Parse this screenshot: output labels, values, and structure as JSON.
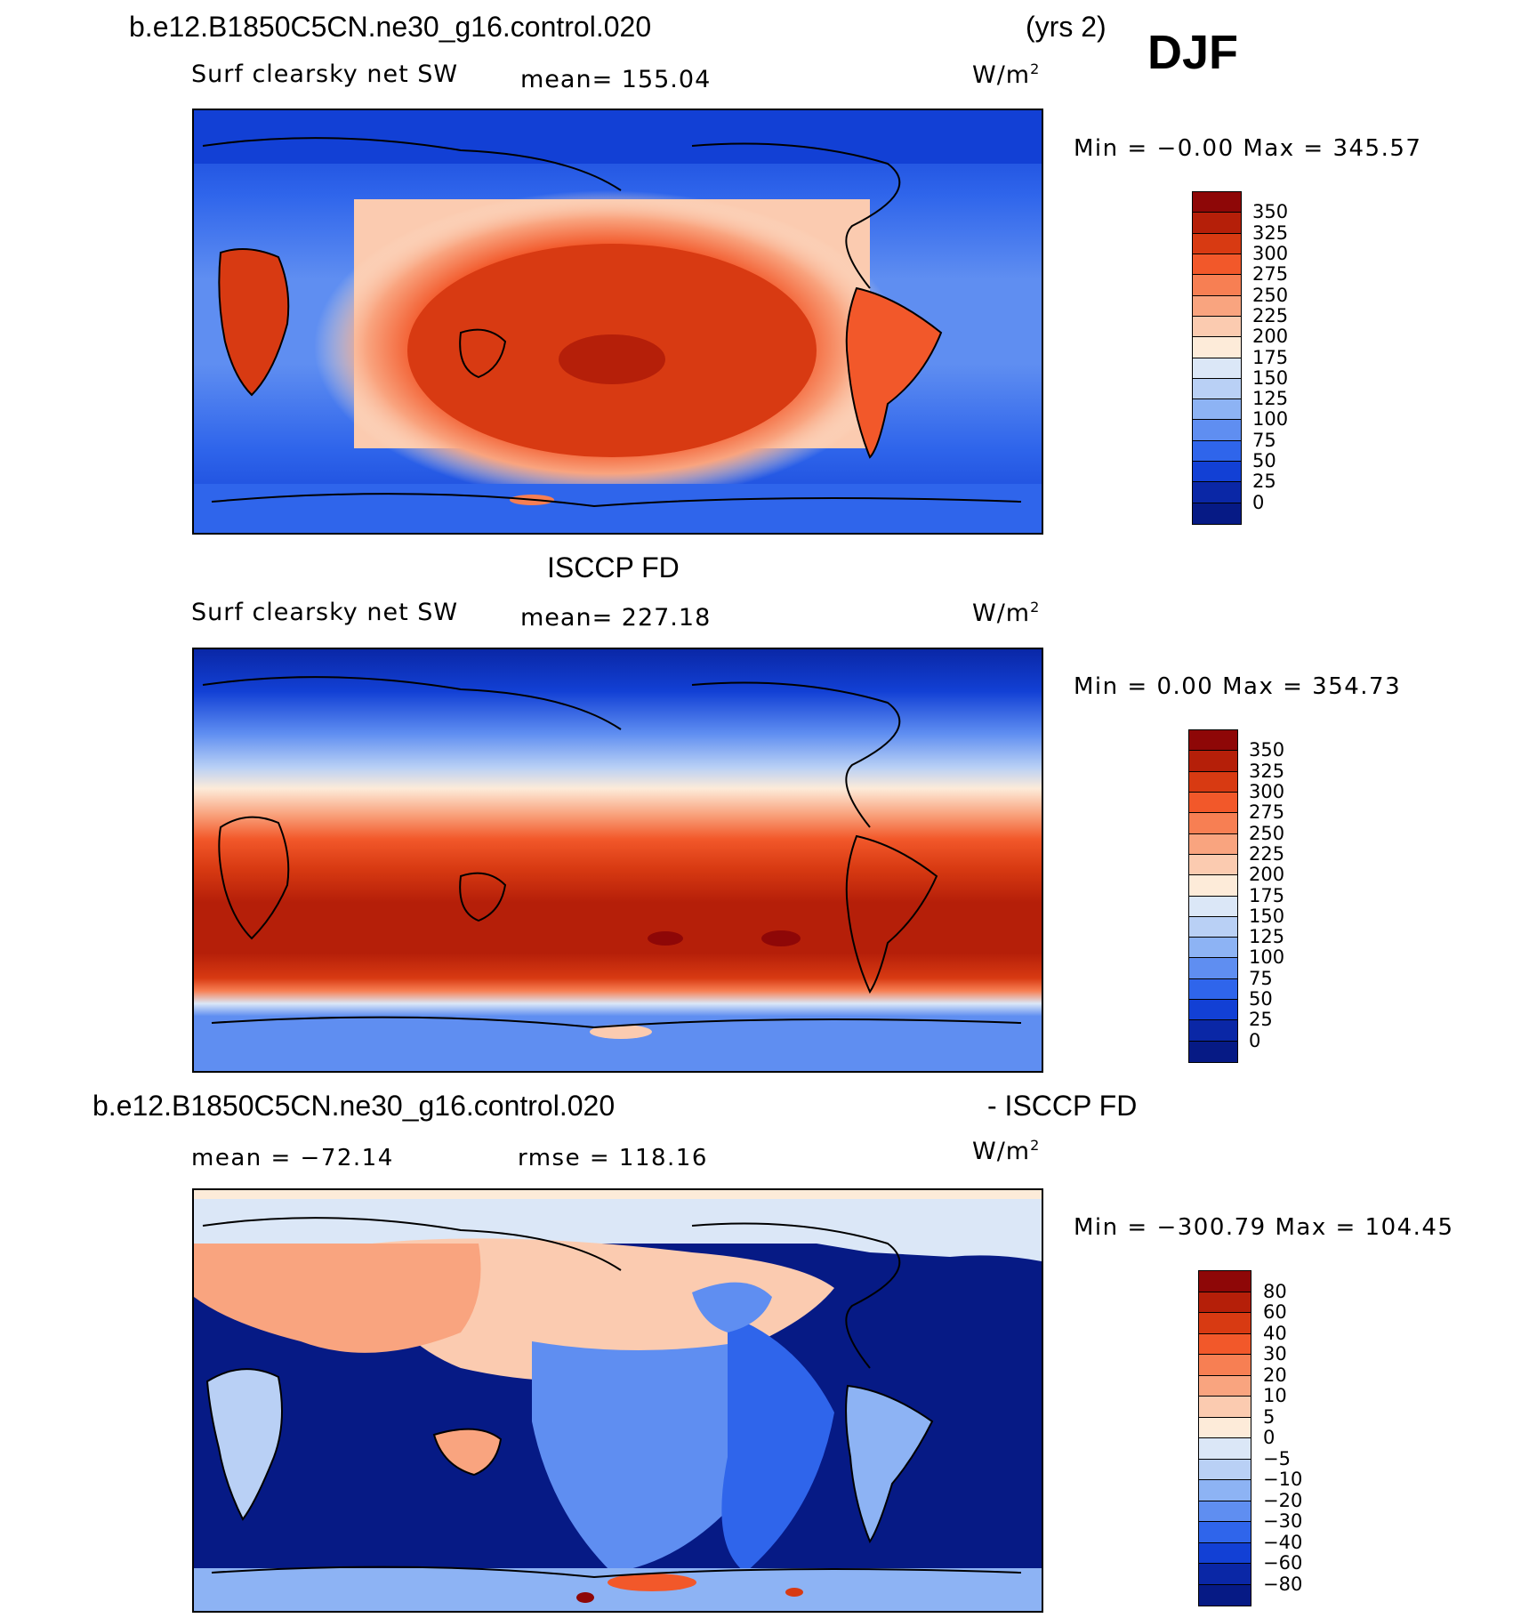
{
  "header": {
    "case_name": "b.e12.B1850C5CN.ne30_g16.control.020",
    "years": "(yrs 2)",
    "season": "DJF"
  },
  "panel1": {
    "variable": "Surf clearsky net SW",
    "mean": "mean= 155.04",
    "units": "W/m",
    "units_sup": "2",
    "minmax": "Min =   −0.00 Max = 345.57",
    "colorbar": {
      "labels": [
        "350",
        "325",
        "300",
        "275",
        "250",
        "225",
        "200",
        "175",
        "150",
        "125",
        "100",
        "75",
        "50",
        "25",
        "0"
      ],
      "colors": [
        "#8e0707",
        "#b51f09",
        "#d83a12",
        "#f2582a",
        "#f77f53",
        "#f9a47f",
        "#fbcbb0",
        "#fdebd9",
        "#dbe7f7",
        "#b9d0f5",
        "#8db3f4",
        "#5f8ef1",
        "#2f65eb",
        "#1240d5",
        "#0a27a6",
        "#061a85"
      ]
    }
  },
  "panel2": {
    "title": "ISCCP FD",
    "variable": "Surf clearsky net SW",
    "mean": "mean= 227.18",
    "units": "W/m",
    "units_sup": "2",
    "minmax": "Min =    0.00 Max = 354.73",
    "colorbar": {
      "labels": [
        "350",
        "325",
        "300",
        "275",
        "250",
        "225",
        "200",
        "175",
        "150",
        "125",
        "100",
        "75",
        "50",
        "25",
        "0"
      ],
      "colors": [
        "#8e0707",
        "#b51f09",
        "#d83a12",
        "#f2582a",
        "#f77f53",
        "#f9a47f",
        "#fbcbb0",
        "#fdebd9",
        "#dbe7f7",
        "#b9d0f5",
        "#8db3f4",
        "#5f8ef1",
        "#2f65eb",
        "#1240d5",
        "#0a27a6",
        "#061a85"
      ]
    }
  },
  "panel3": {
    "title_left": "b.e12.B1850C5CN.ne30_g16.control.020",
    "title_right": "- ISCCP FD",
    "mean": "mean = −72.14",
    "rmse": "rmse = 118.16",
    "units": "W/m",
    "units_sup": "2",
    "minmax": "Min = −300.79 Max = 104.45",
    "colorbar": {
      "labels": [
        "80",
        "60",
        "40",
        "30",
        "20",
        "10",
        "5",
        "0",
        "−5",
        "−10",
        "−20",
        "−30",
        "−40",
        "−60",
        "−80"
      ],
      "colors": [
        "#8e0707",
        "#b51f09",
        "#d83a12",
        "#f2582a",
        "#f77f53",
        "#f9a47f",
        "#fbcbb0",
        "#fdebd9",
        "#dbe7f7",
        "#b9d0f5",
        "#8db3f4",
        "#5f8ef1",
        "#2f65eb",
        "#1240d5",
        "#0a27a6",
        "#061a85"
      ]
    }
  }
}
